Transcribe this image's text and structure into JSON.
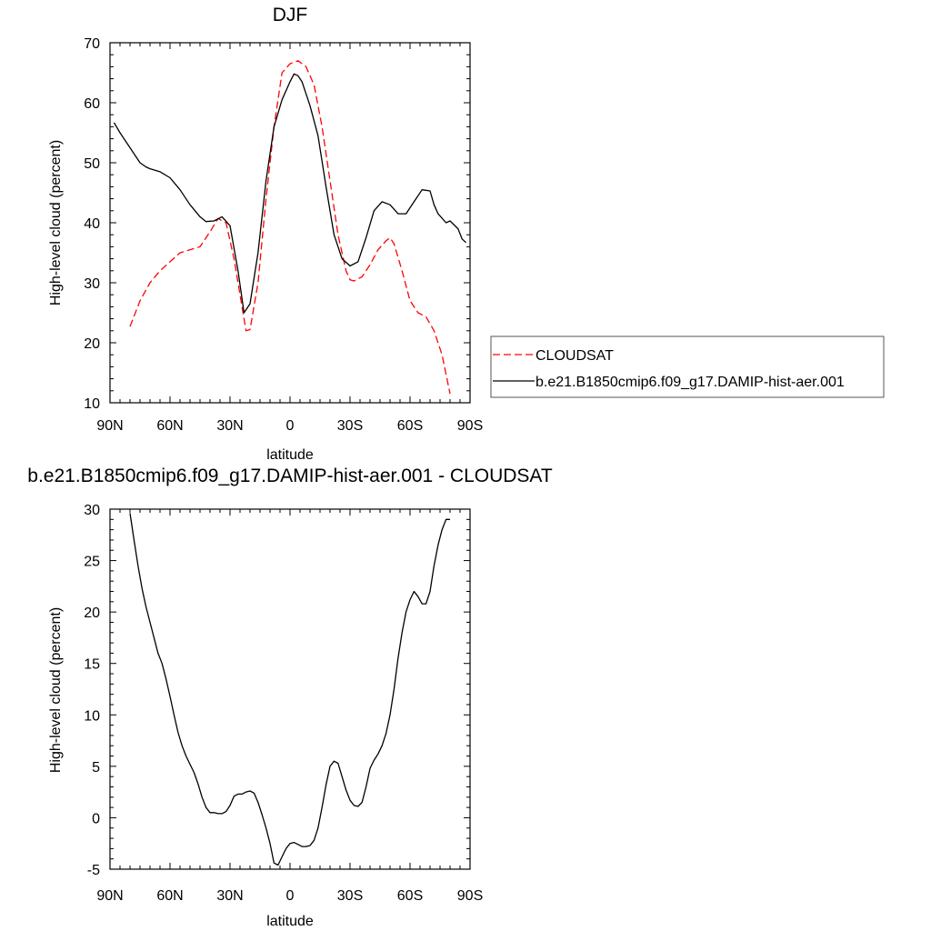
{
  "chart_data": [
    {
      "type": "line",
      "title": "DJF",
      "xlabel": "latitude",
      "ylabel": "High-level cloud (percent)",
      "x_ticks": [
        "90N",
        "60N",
        "30N",
        "0",
        "30S",
        "60S",
        "90S"
      ],
      "x_tick_values": [
        90,
        60,
        30,
        0,
        -30,
        -60,
        -90
      ],
      "xlim": [
        90,
        -90
      ],
      "ylim": [
        10,
        70
      ],
      "y_ticks": [
        "10",
        "20",
        "30",
        "40",
        "50",
        "60",
        "70"
      ],
      "grid": false,
      "legend_position": "right",
      "series": [
        {
          "name": "CLOUDSAT",
          "style": "dashed",
          "color": "#ff0000",
          "x": [
            80,
            75,
            70,
            65,
            60,
            55,
            50,
            45,
            40,
            36,
            32,
            28,
            24,
            22,
            20,
            16,
            12,
            8,
            4,
            0,
            -4,
            -8,
            -12,
            -16,
            -20,
            -24,
            -28,
            -30,
            -32,
            -36,
            -40,
            -44,
            -48,
            -50,
            -52,
            -56,
            -60,
            -64,
            -68,
            -72,
            -76,
            -80
          ],
          "y": [
            22.7,
            27.0,
            30.0,
            32.0,
            33.5,
            35.0,
            35.5,
            36.0,
            38.5,
            40.7,
            40.0,
            34.0,
            26.0,
            22.0,
            22.2,
            30.0,
            44.0,
            56.0,
            65.0,
            66.5,
            67.0,
            66.0,
            63.0,
            56.0,
            47.0,
            38.0,
            32.0,
            30.5,
            30.3,
            31.0,
            33.0,
            35.5,
            37.0,
            37.5,
            36.5,
            32.0,
            27.0,
            25.0,
            24.3,
            22.0,
            18.0,
            11.5
          ]
        },
        {
          "name": "b.e21.B1850cmip6.f09_g17.DAMIP-hist-aer.001",
          "style": "solid",
          "color": "#000000",
          "x": [
            88,
            85,
            80,
            75,
            72,
            70,
            65,
            60,
            55,
            50,
            45,
            42,
            38,
            34,
            30,
            26,
            23,
            20,
            16,
            12,
            8,
            4,
            0,
            -2,
            -4,
            -6,
            -10,
            -14,
            -18,
            -22,
            -26,
            -30,
            -34,
            -38,
            -42,
            -46,
            -50,
            -54,
            -58,
            -62,
            -66,
            -70,
            -72,
            -74,
            -78,
            -80,
            -84,
            -86,
            -88
          ],
          "y": [
            56.7,
            55.0,
            52.5,
            50.0,
            49.3,
            49.0,
            48.5,
            47.5,
            45.5,
            43.0,
            41.0,
            40.2,
            40.3,
            41.0,
            39.5,
            32.0,
            25.0,
            26.5,
            35.0,
            47.0,
            56.0,
            60.5,
            63.5,
            64.8,
            64.5,
            63.5,
            59.5,
            54.5,
            46.0,
            38.0,
            34.0,
            32.8,
            33.5,
            37.5,
            42.0,
            43.5,
            43.0,
            41.5,
            41.5,
            43.5,
            45.5,
            45.3,
            43.0,
            41.5,
            40.0,
            40.3,
            39.0,
            37.3,
            36.7
          ]
        }
      ]
    },
    {
      "type": "line",
      "title": "b.e21.B1850cmip6.f09_g17.DAMIP-hist-aer.001 - CLOUDSAT",
      "xlabel": "latitude",
      "ylabel": "High-level cloud (percent)",
      "x_ticks": [
        "90N",
        "60N",
        "30N",
        "0",
        "30S",
        "60S",
        "90S"
      ],
      "x_tick_values": [
        90,
        60,
        30,
        0,
        -30,
        -60,
        -90
      ],
      "xlim": [
        90,
        -90
      ],
      "ylim": [
        -5,
        30
      ],
      "y_ticks": [
        "-5",
        "0",
        "5",
        "10",
        "15",
        "20",
        "25",
        "30"
      ],
      "grid": false,
      "series": [
        {
          "name": "",
          "style": "solid",
          "color": "#000000",
          "x": [
            80,
            78,
            76,
            74,
            72,
            70,
            66,
            64,
            62,
            60,
            58,
            56,
            54,
            52,
            50,
            48,
            46,
            44,
            42,
            40,
            38,
            36,
            34,
            32,
            30,
            28,
            26,
            24,
            22,
            20,
            18,
            16,
            14,
            12,
            10,
            8,
            6,
            4,
            2,
            0,
            -2,
            -4,
            -6,
            -8,
            -10,
            -12,
            -14,
            -16,
            -18,
            -20,
            -22,
            -24,
            -26,
            -28,
            -30,
            -32,
            -34,
            -36,
            -38,
            -40,
            -42,
            -44,
            -46,
            -48,
            -50,
            -52,
            -54,
            -56,
            -58,
            -60,
            -62,
            -64,
            -66,
            -68,
            -70,
            -72,
            -74,
            -76,
            -78,
            -80
          ],
          "y": [
            29.6,
            27.0,
            24.5,
            22.3,
            20.5,
            19.0,
            16.0,
            15.0,
            13.5,
            11.8,
            10.0,
            8.3,
            7.0,
            6.0,
            5.2,
            4.4,
            3.3,
            2.0,
            1.0,
            0.5,
            0.5,
            0.4,
            0.4,
            0.6,
            1.2,
            2.1,
            2.3,
            2.3,
            2.5,
            2.6,
            2.4,
            1.5,
            0.3,
            -1.0,
            -2.5,
            -4.4,
            -4.6,
            -3.8,
            -3.0,
            -2.5,
            -2.4,
            -2.6,
            -2.8,
            -2.8,
            -2.7,
            -2.2,
            -1.0,
            1.0,
            3.2,
            5.0,
            5.5,
            5.3,
            4.0,
            2.7,
            1.7,
            1.2,
            1.1,
            1.5,
            3.0,
            4.8,
            5.6,
            6.2,
            7.0,
            8.2,
            10.0,
            12.5,
            15.5,
            18.0,
            20.0,
            21.2,
            22.0,
            21.5,
            20.8,
            20.8,
            22.0,
            24.5,
            26.5,
            28.0,
            29.0,
            29.0
          ]
        }
      ]
    }
  ]
}
